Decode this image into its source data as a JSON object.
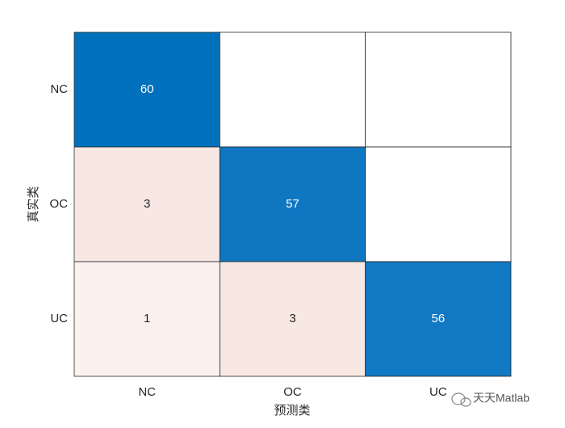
{
  "chart_data": {
    "type": "confusion-matrix",
    "xlabel": "预测类",
    "ylabel": "真实类",
    "x_categories": [
      "NC",
      "OC",
      "UC"
    ],
    "y_categories": [
      "NC",
      "OC",
      "UC"
    ],
    "values": [
      [
        60,
        null,
        null
      ],
      [
        3,
        57,
        null
      ],
      [
        1,
        3,
        56
      ]
    ],
    "cell_colors": [
      [
        "#0072bd",
        "#ffffff",
        "#ffffff"
      ],
      [
        "#f8e8e3",
        "#0f77c2",
        "#ffffff"
      ],
      [
        "#fbf2ef",
        "#f8e8e3",
        "#1178c3"
      ]
    ],
    "watermark": "天天Matlab"
  }
}
